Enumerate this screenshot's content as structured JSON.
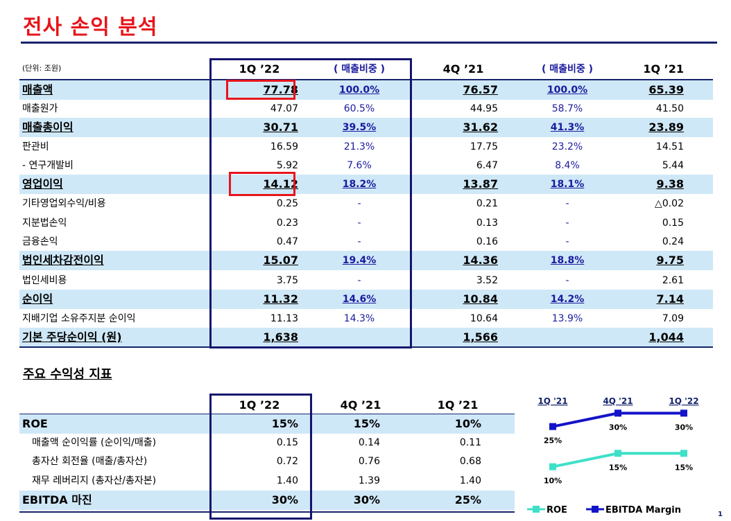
{
  "title": "전사 손익 분석",
  "main_table": {
    "unit": "(단위: 조원)",
    "headers": [
      "1Q ’22",
      "( 매출비중 )",
      "4Q ’21",
      "( 매출비중 )",
      "1Q ’21"
    ],
    "rows": [
      {
        "label": "매출액",
        "v1": "77.78",
        "p1": "100.0%",
        "v2": "76.57",
        "p2": "100.0%",
        "v3": "65.39"
      },
      {
        "label": "매출원가",
        "v1": "47.07",
        "p1": "60.5%",
        "v2": "44.95",
        "p2": "58.7%",
        "v3": "41.50"
      },
      {
        "label": "매출총이익",
        "v1": "30.71",
        "p1": "39.5%",
        "v2": "31.62",
        "p2": "41.3%",
        "v3": "23.89"
      },
      {
        "label": "판관비",
        "v1": "16.59",
        "p1": "21.3%",
        "v2": "17.75",
        "p2": "23.2%",
        "v3": "14.51"
      },
      {
        "label": " - 연구개발비",
        "v1": "5.92",
        "p1": "7.6%",
        "v2": "6.47",
        "p2": "8.4%",
        "v3": "5.44"
      },
      {
        "label": "영업이익",
        "v1": "14.12",
        "p1": "18.2%",
        "v2": "13.87",
        "p2": "18.1%",
        "v3": "9.38"
      },
      {
        "label": "기타영업외수익/비용",
        "v1": "0.25",
        "p1": "-",
        "v2": "0.21",
        "p2": "-",
        "v3": "△0.02"
      },
      {
        "label": "지분법손익",
        "v1": "0.23",
        "p1": "-",
        "v2": "0.13",
        "p2": "-",
        "v3": "0.15"
      },
      {
        "label": "금융손익",
        "v1": "0.47",
        "p1": "-",
        "v2": "0.16",
        "p2": "-",
        "v3": "0.24"
      },
      {
        "label": "법인세차감전이익",
        "v1": "15.07",
        "p1": "19.4%",
        "v2": "14.36",
        "p2": "18.8%",
        "v3": "9.75"
      },
      {
        "label": "법인세비용",
        "v1": "3.75",
        "p1": "-",
        "v2": "3.52",
        "p2": "-",
        "v3": "2.61"
      },
      {
        "label": "순이익",
        "v1": "11.32",
        "p1": "14.6%",
        "v2": "10.84",
        "p2": "14.2%",
        "v3": "7.14"
      },
      {
        "label": "지배기업 소유주지분 순이익",
        "v1": "11.13",
        "p1": "14.3%",
        "v2": "10.64",
        "p2": "13.9%",
        "v3": "7.09"
      },
      {
        "label": "기본 주당순이익 (원)",
        "v1": "1,638",
        "p1": "",
        "v2": "1,566",
        "p2": "",
        "v3": "1,044"
      }
    ]
  },
  "profit_section": {
    "title": "주요 수익성 지표",
    "headers": [
      "1Q ’22",
      "4Q ’21",
      "1Q ’21"
    ],
    "rows": [
      {
        "label": "ROE",
        "v1": "15%",
        "v2": "15%",
        "v3": "10%"
      },
      {
        "label": "매출액 순이익률 (순이익/매출)",
        "v1": "0.15",
        "v2": "0.14",
        "v3": "0.11"
      },
      {
        "label": "총자산 회전율 (매출/총자산)",
        "v1": "0.72",
        "v2": "0.76",
        "v3": "0.68"
      },
      {
        "label": "재무 레버리지 (총자산/총자본)",
        "v1": "1.40",
        "v2": "1.39",
        "v3": "1.40"
      },
      {
        "label": "EBITDA 마진",
        "v1": "30%",
        "v2": "30%",
        "v3": "25%"
      }
    ]
  },
  "chart_data": {
    "type": "line",
    "categories": [
      "1Q '21",
      "4Q '21",
      "1Q '22"
    ],
    "series": [
      {
        "name": "ROE",
        "values": [
          10,
          15,
          15
        ],
        "labels": [
          "10%",
          "15%",
          "15%"
        ],
        "color": "#3ee0c8"
      },
      {
        "name": "EBITDA Margin",
        "values": [
          25,
          30,
          30
        ],
        "labels": [
          "25%",
          "30%",
          "30%"
        ],
        "color": "#1414c8"
      }
    ],
    "ylim": [
      5,
      35
    ]
  },
  "page_number": "1",
  "colors": {
    "title": "#e8141b",
    "navy": "#15236b",
    "highlight": "#cfe8f7",
    "pct": "#1a1a9e"
  }
}
